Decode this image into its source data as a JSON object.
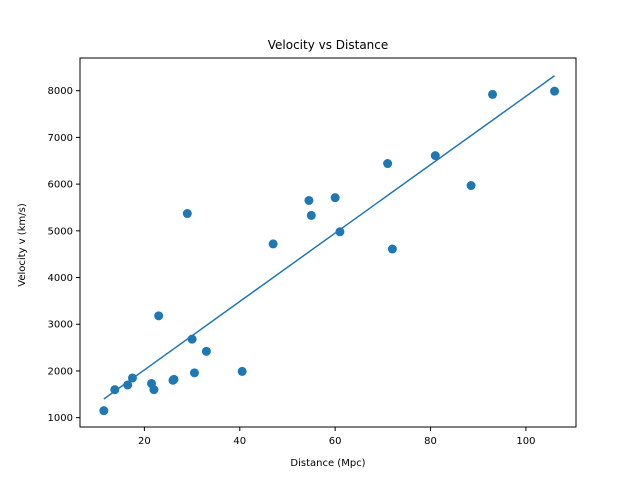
{
  "chart_data": {
    "type": "scatter",
    "title": "Velocity vs Distance",
    "xlabel": "Distance (Mpc)",
    "ylabel": "Velocity v (km/s)",
    "xlim": [
      6.5,
      110.5
    ],
    "ylim": [
      800,
      8700
    ],
    "xticks": [
      20,
      40,
      60,
      80,
      100
    ],
    "yticks": [
      1000,
      2000,
      3000,
      4000,
      5000,
      6000,
      7000,
      8000
    ],
    "grid": false,
    "marker_color": "#1f77b4",
    "line_color": "#1f77b4",
    "points": [
      {
        "x": 11.5,
        "y": 1150
      },
      {
        "x": 13.8,
        "y": 1600
      },
      {
        "x": 16.5,
        "y": 1700
      },
      {
        "x": 17.5,
        "y": 1850
      },
      {
        "x": 21.5,
        "y": 1730
      },
      {
        "x": 22.0,
        "y": 1600
      },
      {
        "x": 23.0,
        "y": 3180
      },
      {
        "x": 26.0,
        "y": 1800
      },
      {
        "x": 26.2,
        "y": 1820
      },
      {
        "x": 29.0,
        "y": 5370
      },
      {
        "x": 30.0,
        "y": 2680
      },
      {
        "x": 30.5,
        "y": 1960
      },
      {
        "x": 33.0,
        "y": 2420
      },
      {
        "x": 40.5,
        "y": 1990
      },
      {
        "x": 47.0,
        "y": 4720
      },
      {
        "x": 54.5,
        "y": 5650
      },
      {
        "x": 55.0,
        "y": 5330
      },
      {
        "x": 60.0,
        "y": 5710
      },
      {
        "x": 61.0,
        "y": 4980
      },
      {
        "x": 71.0,
        "y": 6440
      },
      {
        "x": 72.0,
        "y": 4610
      },
      {
        "x": 81.0,
        "y": 6610
      },
      {
        "x": 88.5,
        "y": 5970
      },
      {
        "x": 93.0,
        "y": 7920
      },
      {
        "x": 106.0,
        "y": 7990
      }
    ],
    "fit_line": {
      "x": [
        11.5,
        106.0
      ],
      "y": [
        1400,
        8320
      ]
    }
  }
}
